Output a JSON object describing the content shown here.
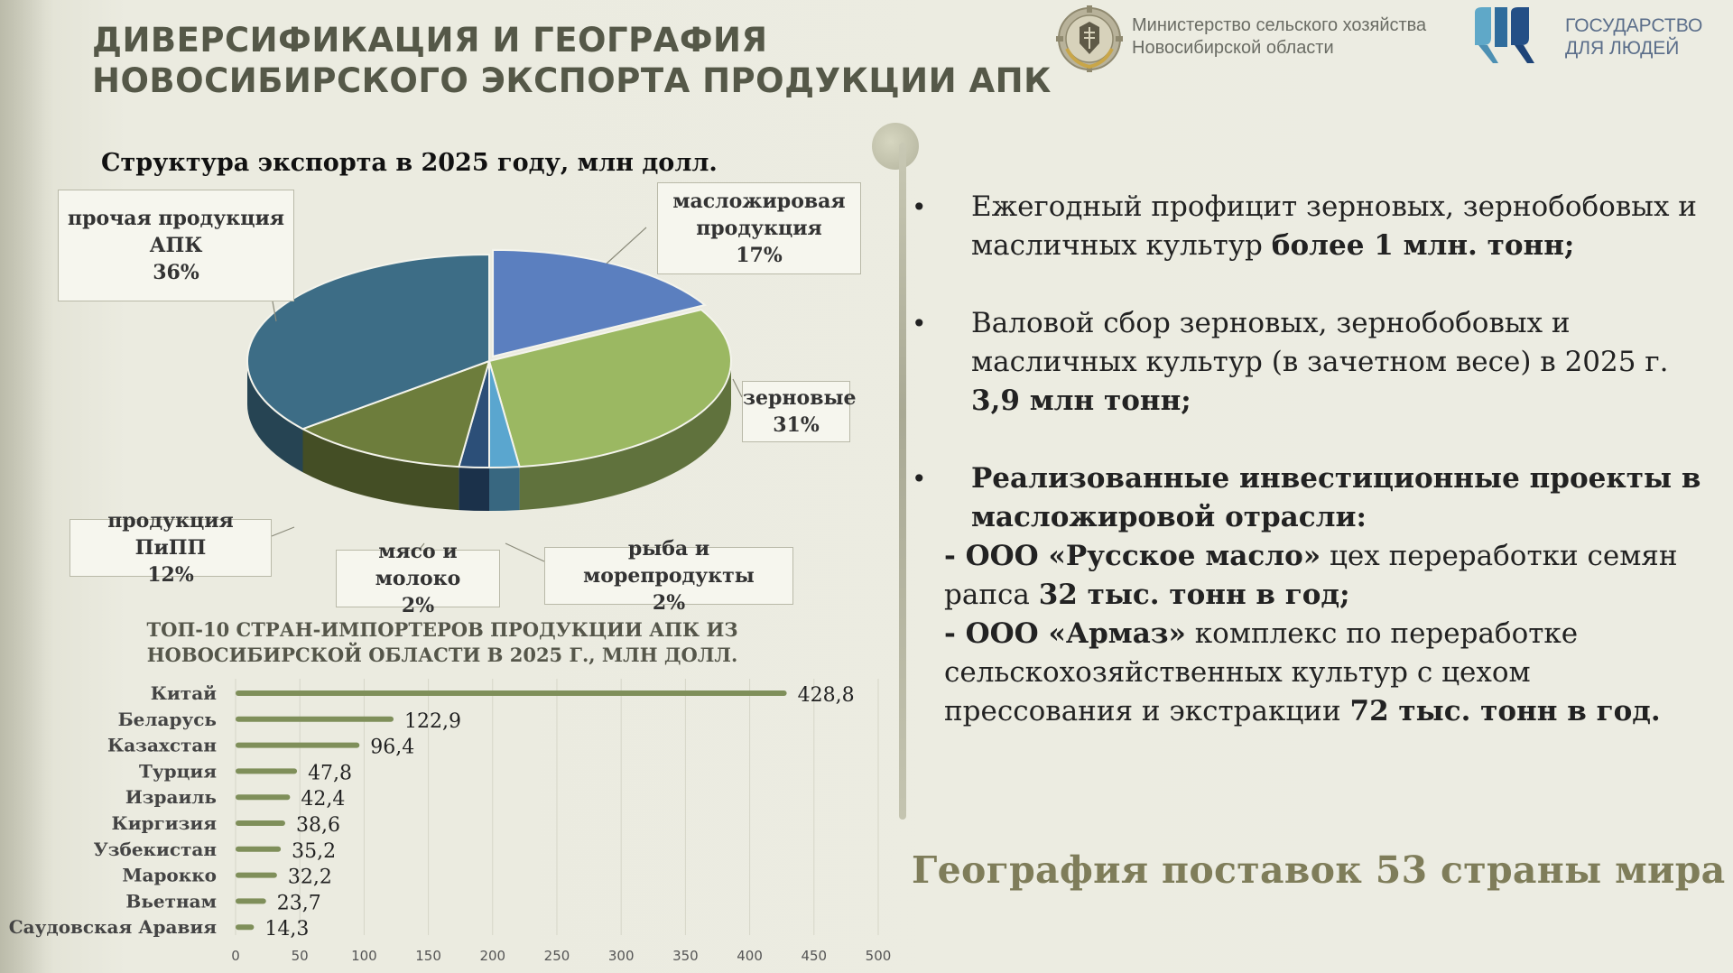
{
  "header": {
    "title_line1": "ДИВЕРСИФИКАЦИЯ И ГЕОГРАФИЯ",
    "title_line2": "НОВОСИБИРСКОГО ЭКСПОРТА ПРОДУКЦИИ АПК",
    "ministry_line1": "Министерство сельского хозяйства",
    "ministry_line2": "Новосибирской области",
    "gov_line1": "ГОСУДАРСТВО",
    "gov_line2": "ДЛЯ ЛЮДЕЙ",
    "ministry_logo_icon": "ministry-emblem-icon",
    "gov_logo_icon": "gov-for-people-logo-icon"
  },
  "chart_data": [
    {
      "type": "pie",
      "title": "Структура экспорта в 2025 году, млн долл.",
      "slices": [
        {
          "label_line1": "масложировая",
          "label_line2": "продукция",
          "value": 17,
          "pct": "17%",
          "color": "#5b7fbf"
        },
        {
          "label_line1": "зерновые",
          "label_line2": "",
          "value": 31,
          "pct": "31%",
          "color": "#9bb862"
        },
        {
          "label_line1": "рыба и морепродукты",
          "label_line2": "",
          "value": 2,
          "pct": "2%",
          "color": "#5aa6cf"
        },
        {
          "label_line1": "мясо и молоко",
          "label_line2": "",
          "value": 2,
          "pct": "2%",
          "color": "#2c4f78"
        },
        {
          "label_line1": "продукция ПиПП",
          "label_line2": "",
          "value": 12,
          "pct": "12%",
          "color": "#6d7d3c"
        },
        {
          "label_line1": "прочая продукция",
          "label_line2": "АПК",
          "value": 36,
          "pct": "36%",
          "color": "#3d6d86"
        }
      ]
    },
    {
      "type": "bar",
      "orientation": "horizontal",
      "title_line1": "ТОП-10 СТРАН-ИМПОРТЕРОВ ПРОДУКЦИИ АПК ИЗ",
      "title_line2": "НОВОСИБИРСКОЙ ОБЛАСТИ В 2025 Г., МЛН ДОЛЛ.",
      "categories": [
        "Китай",
        "Беларусь",
        "Казахстан",
        "Турция",
        "Израиль",
        "Киргизия",
        "Узбекистан",
        "Марокко",
        "Вьетнам",
        "Саудовская Аравия"
      ],
      "values": [
        428.8,
        122.9,
        96.4,
        47.8,
        42.4,
        38.6,
        35.2,
        32.2,
        23.7,
        14.3
      ],
      "value_labels": [
        "428,8",
        "122,9",
        "96,4",
        "47,8",
        "42,4",
        "38,6",
        "35,2",
        "32,2",
        "23,7",
        "14,3"
      ],
      "xlim": [
        0,
        500
      ],
      "xticks": [
        "0",
        "50",
        "100",
        "150",
        "200",
        "250",
        "300",
        "350",
        "400",
        "450",
        "500"
      ],
      "grid": true,
      "bar_color": "#7f8f5a"
    }
  ],
  "bullets": [
    {
      "parts": [
        {
          "t": "Ежегодный профицит зерновых, зернобобовых и масличных культур ",
          "b": false
        },
        {
          "t": "более 1 млн. тонн;",
          "b": true
        }
      ]
    },
    {
      "parts": [
        {
          "t": "Валовой сбор зерновых, зернобобовых и масличных культур (в зачетном весе) в 2025 г. ",
          "b": false
        },
        {
          "t": "3,9 млн тонн;",
          "b": true
        }
      ]
    },
    {
      "parts": [
        {
          "t": "Реализованные инвестиционные проекты в масложировой отрасли:",
          "b": true
        }
      ]
    }
  ],
  "projects": [
    {
      "parts": [
        {
          "t": "- ООО «Русское масло»",
          "b": true
        },
        {
          "t": " цех переработки семян рапса ",
          "b": false
        },
        {
          "t": "32 тыс. тонн в год;",
          "b": true
        }
      ]
    },
    {
      "parts": [
        {
          "t": "- ООО «Армаз»",
          "b": true
        },
        {
          "t": " комплекс по переработке сельскохозяйственных культур с цехом прессования и экстракции ",
          "b": false
        },
        {
          "t": "72 тыс. тонн в год.",
          "b": true
        }
      ]
    }
  ],
  "footer": {
    "geography": "География поставок 53 страны мира"
  }
}
